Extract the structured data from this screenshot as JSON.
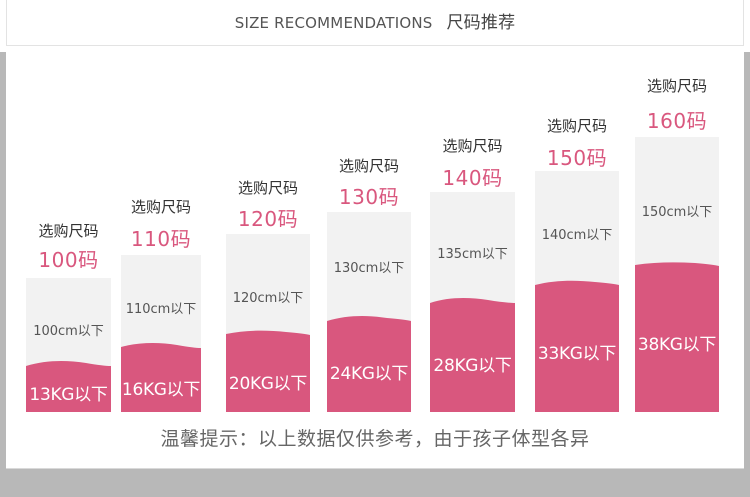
{
  "header": {
    "title_en": "SIZE RECOMMENDATIONS",
    "title_cn": "尺码推荐"
  },
  "colors": {
    "accent": "#d9577e",
    "bar_bg": "#f2f2f2",
    "panel": "#b8b8b8"
  },
  "columns": [
    {
      "pick_label": "选购尺码",
      "size": "100码",
      "height": "100cm以下",
      "weight": "13KG以下"
    },
    {
      "pick_label": "选购尺码",
      "size": "110码",
      "height": "110cm以下",
      "weight": "16KG以下"
    },
    {
      "pick_label": "选购尺码",
      "size": "120码",
      "height": "120cm以下",
      "weight": "20KG以下"
    },
    {
      "pick_label": "选购尺码",
      "size": "130码",
      "height": "130cm以下",
      "weight": "24KG以下"
    },
    {
      "pick_label": "选购尺码",
      "size": "140码",
      "height": "135cm以下",
      "weight": "28KG以下"
    },
    {
      "pick_label": "选购尺码",
      "size": "150码",
      "height": "140cm以下",
      "weight": "33KG以下"
    },
    {
      "pick_label": "选购尺码",
      "size": "160码",
      "height": "150cm以下",
      "weight": "38KG以下"
    }
  ],
  "note": "温馨提示：以上数据仅供参考，由于孩子体型各异"
}
